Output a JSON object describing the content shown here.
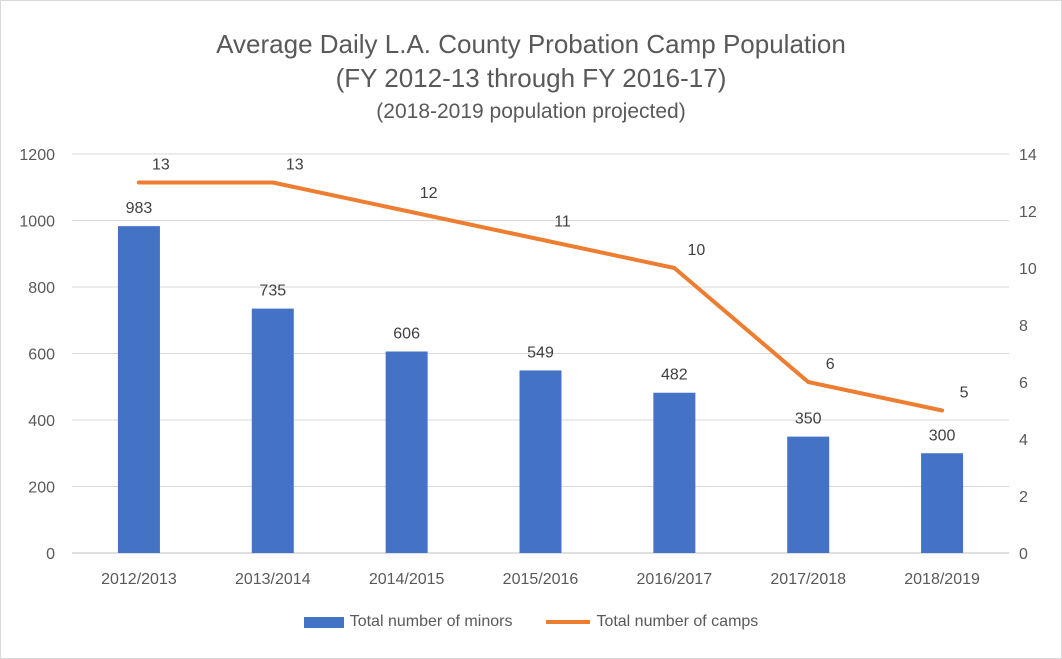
{
  "chart_data": {
    "type": "bar",
    "title": "Average Daily L.A. County Probation Camp Population",
    "subtitle": "(FY 2012-13 through FY 2016-17)",
    "subtitle2": "(2018-2019 population projected)",
    "categories": [
      "2012/2013",
      "2013/2014",
      "2014/2015",
      "2015/2016",
      "2016/2017",
      "2017/2018",
      "2018/2019"
    ],
    "series": [
      {
        "name": "Total number of minors",
        "type": "bar",
        "axis": "left",
        "color": "#4472C4",
        "values": [
          983,
          735,
          606,
          549,
          482,
          350,
          300
        ],
        "labels": [
          "983",
          "735",
          "606",
          "549",
          "482",
          "350",
          "300"
        ]
      },
      {
        "name": "Total number of camps",
        "type": "line",
        "axis": "right",
        "color": "#ED7D31",
        "values": [
          13,
          13,
          12,
          11,
          10,
          6,
          5
        ],
        "labels": [
          "13",
          "13",
          "12",
          "11",
          "10",
          "6",
          "5"
        ]
      }
    ],
    "y_left": {
      "min": 0,
      "max": 1200,
      "step": 200,
      "ticks": [
        "0",
        "200",
        "400",
        "600",
        "800",
        "1000",
        "1200"
      ]
    },
    "y_right": {
      "min": 0,
      "max": 14,
      "step": 2,
      "ticks": [
        "0",
        "2",
        "4",
        "6",
        "8",
        "10",
        "12",
        "14"
      ]
    },
    "grid": true,
    "legend": "bottom"
  }
}
